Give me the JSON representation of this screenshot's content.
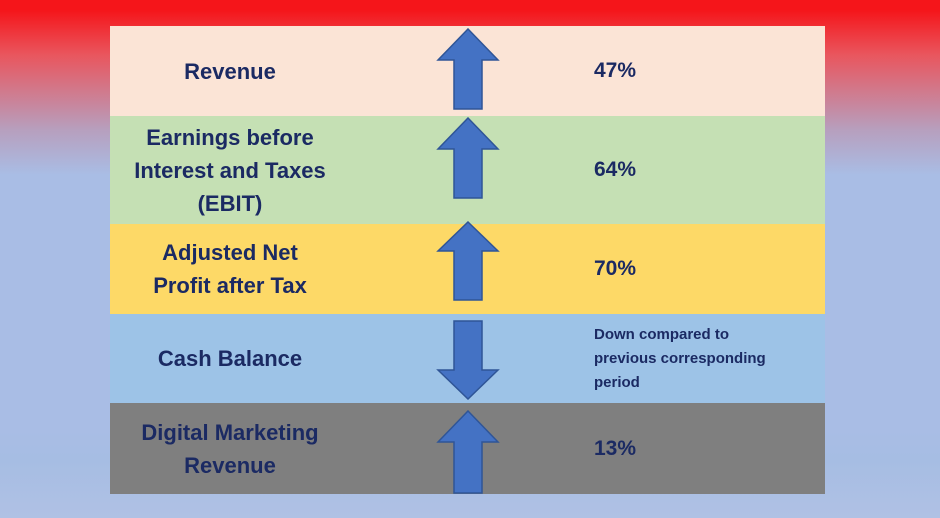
{
  "rows": [
    {
      "label": "Revenue",
      "value": "47%",
      "direction": "up"
    },
    {
      "label": "Earnings before\nInterest and Taxes\n(EBIT)",
      "value": "64%",
      "direction": "up"
    },
    {
      "label": "Adjusted Net\nProfit after Tax",
      "value": "70%",
      "direction": "up"
    },
    {
      "label": "Cash Balance",
      "value": "Down compared to\nprevious corresponding\nperiod",
      "direction": "down"
    },
    {
      "label": "Digital Marketing\nRevenue",
      "value": "13%",
      "direction": "up"
    }
  ],
  "colors": {
    "text": "#1b2a63",
    "arrow_fill": "#4472c4",
    "arrow_stroke": "#2f5597",
    "row_backgrounds": [
      "#fbe4d6",
      "#c5e0b4",
      "#fdd967",
      "#9dc3e7",
      "#7f7f7f"
    ]
  },
  "icons": {
    "up": "up-arrow-icon",
    "down": "down-arrow-icon"
  }
}
